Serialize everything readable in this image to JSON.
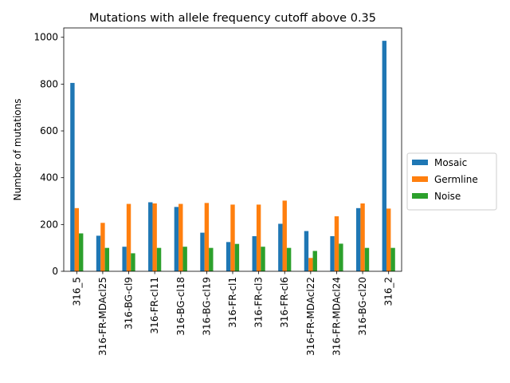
{
  "chart_data": {
    "type": "bar",
    "title": "Mutations with allele frequency cutoff above 0.35",
    "xlabel": "",
    "ylabel": "Number of mutations",
    "ylim": [
      0,
      1040
    ],
    "yticks": [
      0,
      200,
      400,
      600,
      800,
      1000
    ],
    "categories": [
      "316_5",
      "316-FR-MDAcl25",
      "316-BG-cl9",
      "316-FR-cl11",
      "316-BG-cl18",
      "316-BG-cl19",
      "316-FR-cl1",
      "316-FR-cl3",
      "316-FR-cl6",
      "316-FR-MDAcl22",
      "316-FR-MDAcl24",
      "316-BG-cl20",
      "316_2"
    ],
    "series": [
      {
        "name": "Mosaic",
        "color": "#1f77b4",
        "values": [
          805,
          152,
          105,
          295,
          275,
          165,
          125,
          150,
          203,
          172,
          150,
          270,
          985
        ]
      },
      {
        "name": "Germline",
        "color": "#ff7f0e",
        "values": [
          270,
          207,
          288,
          290,
          288,
          292,
          285,
          285,
          302,
          57,
          235,
          290,
          268
        ]
      },
      {
        "name": "Noise",
        "color": "#2ca02c",
        "values": [
          162,
          100,
          77,
          100,
          105,
          100,
          117,
          105,
          100,
          87,
          118,
          100,
          100
        ]
      }
    ],
    "grid": false,
    "legend_position": "right"
  }
}
